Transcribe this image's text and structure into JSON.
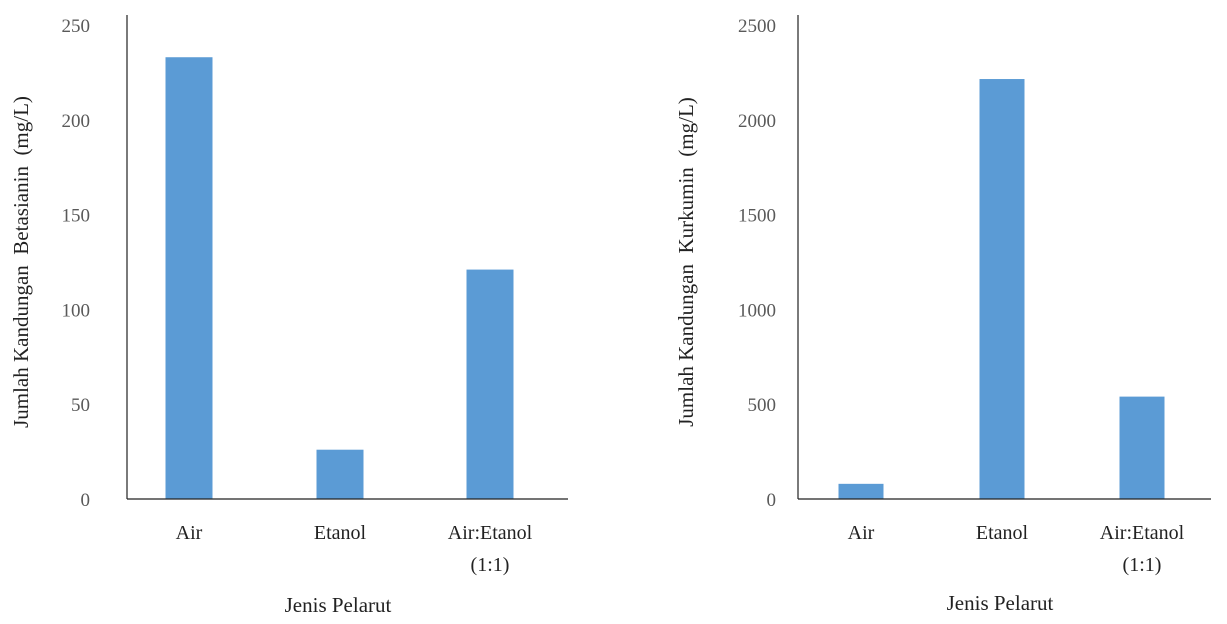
{
  "colors": {
    "bar": "#5b9bd5",
    "axis": "#222222",
    "tick_text": "#595959"
  },
  "chart_data": [
    {
      "type": "bar",
      "title": "",
      "categories": [
        [
          "Air"
        ],
        [
          "Etanol"
        ],
        [
          "Air:Etanol",
          "(1:1)"
        ]
      ],
      "values": [
        233,
        26,
        121
      ],
      "xlabel": "Jenis Pelarut",
      "ylabel": "Jumlah Kandungan  Betasianin  (mg/L)",
      "ylim": [
        0,
        250
      ],
      "yticks": [
        0,
        50,
        100,
        150,
        200,
        250
      ],
      "grid": false,
      "legend": "none"
    },
    {
      "type": "bar",
      "title": "",
      "categories": [
        [
          "Air"
        ],
        [
          "Etanol"
        ],
        [
          "Air:Etanol",
          "(1:1)"
        ]
      ],
      "values": [
        80,
        2215,
        540
      ],
      "xlabel": "Jenis Pelarut",
      "ylabel": "Jumlah Kandungan  Kurkumin  (mg/L)",
      "ylim": [
        0,
        2500
      ],
      "yticks": [
        0,
        500,
        1000,
        1500,
        2000,
        2500
      ],
      "grid": false,
      "legend": "none"
    }
  ]
}
